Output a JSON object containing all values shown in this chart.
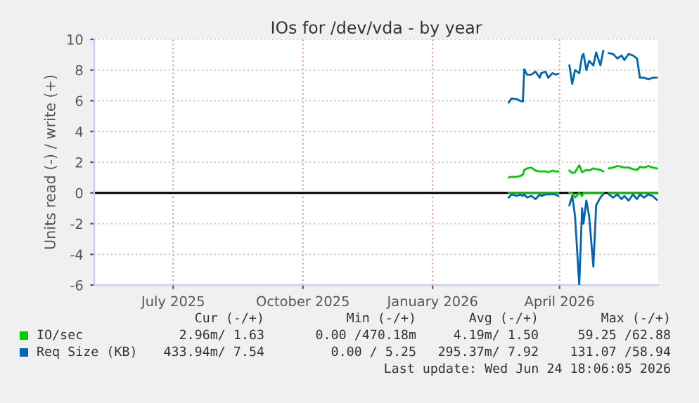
{
  "chart_data": {
    "type": "line",
    "title": "IOs for /dev/vda - by year",
    "ylabel": "Units read (-) / write (+)",
    "x": [
      "2026-03-11",
      "2026-03-13",
      "2026-03-17",
      "2026-03-19",
      "2026-03-21",
      "2026-03-22",
      "2026-03-24",
      "2026-03-27",
      "2026-03-30",
      "2026-04-02",
      "2026-04-03",
      "2026-04-06",
      "2026-04-08",
      "2026-04-11",
      "2026-04-13",
      "2026-04-15",
      "2026-04-19",
      "2026-04-23",
      "2026-04-25",
      "2026-04-27",
      "2026-04-30",
      "2026-05-02",
      "2026-05-03",
      "2026-05-05",
      "2026-05-07",
      "2026-05-10",
      "2026-05-12",
      "2026-05-15",
      "2026-05-17",
      "2026-05-19",
      "2026-05-21",
      "2026-05-24",
      "2026-05-27",
      "2026-05-30",
      "2026-06-01",
      "2026-06-04",
      "2026-06-07",
      "2026-06-10",
      "2026-06-12",
      "2026-06-15",
      "2026-06-18",
      "2026-06-21",
      "2026-06-24"
    ],
    "series": [
      {
        "name": "IO/sec",
        "color": "#00cc00",
        "values": [
          1.0,
          1.05,
          1.05,
          1.1,
          1.2,
          1.5,
          1.6,
          1.65,
          1.45,
          1.4,
          1.4,
          1.4,
          1.35,
          1.45,
          1.4,
          1.4,
          null,
          1.45,
          1.3,
          1.35,
          1.8,
          1.35,
          1.4,
          1.5,
          1.45,
          1.6,
          1.55,
          1.5,
          1.4,
          null,
          1.6,
          1.65,
          1.75,
          1.7,
          1.65,
          1.65,
          1.55,
          1.5,
          1.7,
          1.65,
          1.75,
          1.65,
          1.6
        ]
      },
      {
        "name": "Req Size (KB)",
        "color": "#0066b3",
        "values": [
          5.9,
          6.15,
          6.1,
          6.0,
          5.95,
          8.05,
          7.7,
          7.7,
          7.9,
          7.5,
          7.8,
          7.9,
          7.5,
          7.8,
          7.7,
          7.75,
          null,
          8.3,
          7.1,
          8.0,
          7.8,
          8.9,
          9.05,
          8.0,
          8.6,
          8.3,
          9.15,
          8.3,
          9.25,
          null,
          9.1,
          9.05,
          8.75,
          8.95,
          8.65,
          9.05,
          8.95,
          8.75,
          7.5,
          7.5,
          7.4,
          7.5,
          7.5
        ]
      },
      {
        "color": "#00cc00",
        "values": [
          0,
          0,
          0,
          0,
          0,
          0,
          0,
          0,
          0,
          0,
          0,
          0,
          0,
          0,
          0,
          0,
          null,
          0,
          0,
          -0.3,
          0,
          -0.2,
          0,
          0,
          0,
          0,
          0,
          0,
          0,
          null,
          0,
          0,
          0,
          0,
          0,
          0,
          0,
          0,
          0,
          0,
          0,
          0,
          0
        ]
      },
      {
        "color": "#0066b3",
        "values": [
          -0.3,
          -0.1,
          -0.2,
          -0.1,
          -0.2,
          -0.1,
          -0.3,
          -0.2,
          -0.4,
          -0.1,
          -0.2,
          -0.1,
          -0.1,
          -0.1,
          -0.1,
          -0.2,
          null,
          -0.8,
          -0.2,
          -1.5,
          -6.0,
          -1.0,
          -2.0,
          -0.5,
          -1.5,
          -4.8,
          -0.8,
          -0.3,
          -0.1,
          null,
          -0.1,
          -0.3,
          -0.1,
          -0.4,
          -0.2,
          -0.5,
          -0.1,
          -0.4,
          -0.1,
          -0.3,
          -0.1,
          -0.2,
          -0.45
        ]
      }
    ],
    "xlim": [
      "2025-05-21",
      "2026-06-25"
    ],
    "xticks": [
      {
        "value": "2025-07-16",
        "label": "July 2025"
      },
      {
        "value": "2025-10-16",
        "label": "October 2025"
      },
      {
        "value": "2026-01-16",
        "label": "January 2026"
      },
      {
        "value": "2026-04-16",
        "label": "April 2026"
      }
    ],
    "ylim": [
      -6,
      10
    ],
    "yticks": [
      -6,
      -4,
      -2,
      0,
      2,
      4,
      6,
      8,
      10
    ],
    "ref_lines": [
      {
        "axis": "y",
        "value": 0,
        "color": "#000000"
      }
    ],
    "grid": true,
    "legend": "bottom",
    "annotations": [
      "Cur (-/+)",
      "Min (-/+)",
      "Avg (-/+)",
      "Max (-/+)",
      "2.96m/ 1.63",
      "0.00 /470.18m",
      "4.19m/ 1.50",
      "59.25 /62.88",
      "433.94m/ 7.54",
      "0.00 / 5.25",
      "295.37m/ 7.92",
      "131.07 /58.94",
      "Last update: Wed Jun 24 18:06:05 2026"
    ]
  }
}
